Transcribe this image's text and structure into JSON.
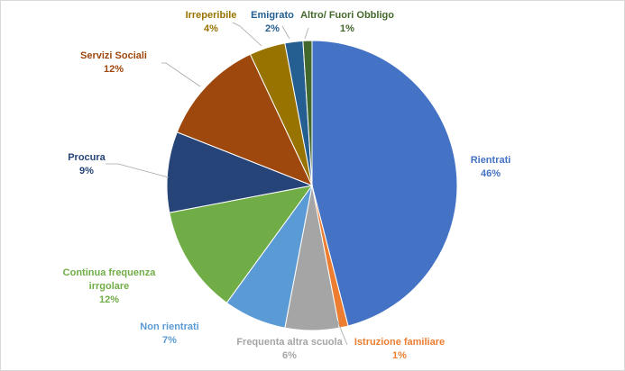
{
  "chart_data": {
    "type": "pie",
    "title": "",
    "start_angle_deg": 0,
    "direction": "clockwise",
    "slices": [
      {
        "name": "Rientrati",
        "value": 46,
        "label": "46%",
        "color": "#4472c4",
        "label_color": "#4472c4"
      },
      {
        "name": "Istruzione familiare",
        "value": 1,
        "label": "1%",
        "color": "#ed7d31",
        "label_color": "#ed7d31"
      },
      {
        "name": "Frequenta altra scuola",
        "value": 6,
        "label": "6%",
        "color": "#a5a5a5",
        "label_color": "#a5a5a5"
      },
      {
        "name": "Non rientrati",
        "value": 7,
        "label": "7%",
        "color": "#5b9bd5",
        "label_color": "#5b9bd5"
      },
      {
        "name": "Continua frequenza irrgolare",
        "value": 12,
        "label": "12%",
        "color": "#70ad47",
        "label_color": "#70ad47"
      },
      {
        "name": "Procura",
        "value": 9,
        "label": "9%",
        "color": "#264478",
        "label_color": "#264478"
      },
      {
        "name": "Servizi Sociali",
        "value": 12,
        "label": "12%",
        "color": "#9e480e",
        "label_color": "#9e480e"
      },
      {
        "name": "Irreperibile",
        "value": 4,
        "label": "4%",
        "color": "#997300",
        "label_color": "#997300"
      },
      {
        "name": "Emigrato",
        "value": 2,
        "label": "2%",
        "color": "#255e91",
        "label_color": "#255e91"
      },
      {
        "name": "Altro/ Fuori Obbligo",
        "value": 1,
        "label": "1%",
        "color": "#43682b",
        "label_color": "#43682b"
      }
    ]
  }
}
